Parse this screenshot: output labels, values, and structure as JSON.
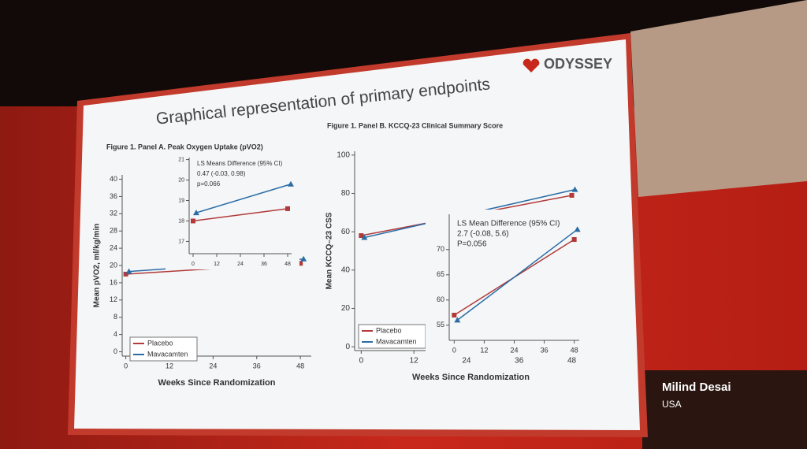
{
  "slide_title": "Graphical representation of primary endpoints",
  "logo": "ODYSSEY",
  "speaker": {
    "name": "Milind Desai",
    "country": "USA"
  },
  "chart_data": [
    {
      "type": "line",
      "title": "Figure 1. Panel A. Peak Oxygen Uptake (pVO2)",
      "x_label": "Weeks Since Randomization",
      "y_label": "Mean pVO2, ml/kg/min",
      "x": [
        0,
        48
      ],
      "series": [
        {
          "name": "Placebo",
          "color": "#b23a3a",
          "values": [
            18.0,
            20.5
          ]
        },
        {
          "name": "Mavacamten",
          "color": "#2a6ca6",
          "values": [
            18.6,
            21.5
          ]
        }
      ],
      "xlim": [
        -1,
        51
      ],
      "xticks": [
        0,
        12,
        24,
        36,
        48
      ],
      "ylim": [
        -1,
        41
      ],
      "yticks": [
        0,
        4,
        8,
        12,
        16,
        20,
        24,
        28,
        32,
        36,
        40
      ],
      "legend": "lower left"
    },
    {
      "type": "line",
      "x": [
        0,
        48
      ],
      "series": [
        {
          "color": "#b23a3a",
          "values": [
            18.0,
            18.6
          ]
        },
        {
          "color": "#2a6ca6",
          "values": [
            18.4,
            19.8
          ]
        }
      ],
      "xlim": [
        -2,
        50
      ],
      "xticks": [
        0,
        12,
        24,
        36,
        48
      ],
      "ylim": [
        16.4,
        21.1
      ],
      "yticks": [
        17,
        18,
        19,
        20,
        21
      ],
      "annotations": [
        "LS Means Difference (95% CI)",
        "0.47 (-0.03, 0.98)",
        "p=0.066"
      ]
    },
    {
      "type": "line",
      "title": "Figure 1. Panel B. KCCQ-23 Clinical Summary Score",
      "x_label": "Weeks Since Randomization",
      "y_label": "Mean KCCQ–23 CSS",
      "x": [
        0,
        48
      ],
      "series": [
        {
          "name": "Placebo",
          "color": "#b23a3a",
          "values": [
            58,
            79
          ]
        },
        {
          "name": "Mavacamten",
          "color": "#2a6ca6",
          "values": [
            57,
            82
          ]
        }
      ],
      "xlim": [
        -1.5,
        51.5
      ],
      "xticks": [
        0,
        12,
        24,
        36,
        48
      ],
      "ylim": [
        -2,
        102
      ],
      "yticks": [
        0,
        20,
        40,
        60,
        80,
        100
      ],
      "legend": "lower left"
    },
    {
      "type": "line",
      "x": [
        0,
        48
      ],
      "series": [
        {
          "color": "#b23a3a",
          "values": [
            57,
            72
          ]
        },
        {
          "color": "#2a6ca6",
          "values": [
            56,
            74
          ]
        }
      ],
      "xlim": [
        -2,
        50
      ],
      "xticks": [
        0,
        12,
        24,
        36,
        48
      ],
      "ylim": [
        52,
        77
      ],
      "yticks": [
        55,
        60,
        65,
        70
      ],
      "annotations": [
        "LS Mean Difference (95% CI)",
        "2.7 (-0.08, 5.6)",
        "P=0.056"
      ]
    }
  ]
}
